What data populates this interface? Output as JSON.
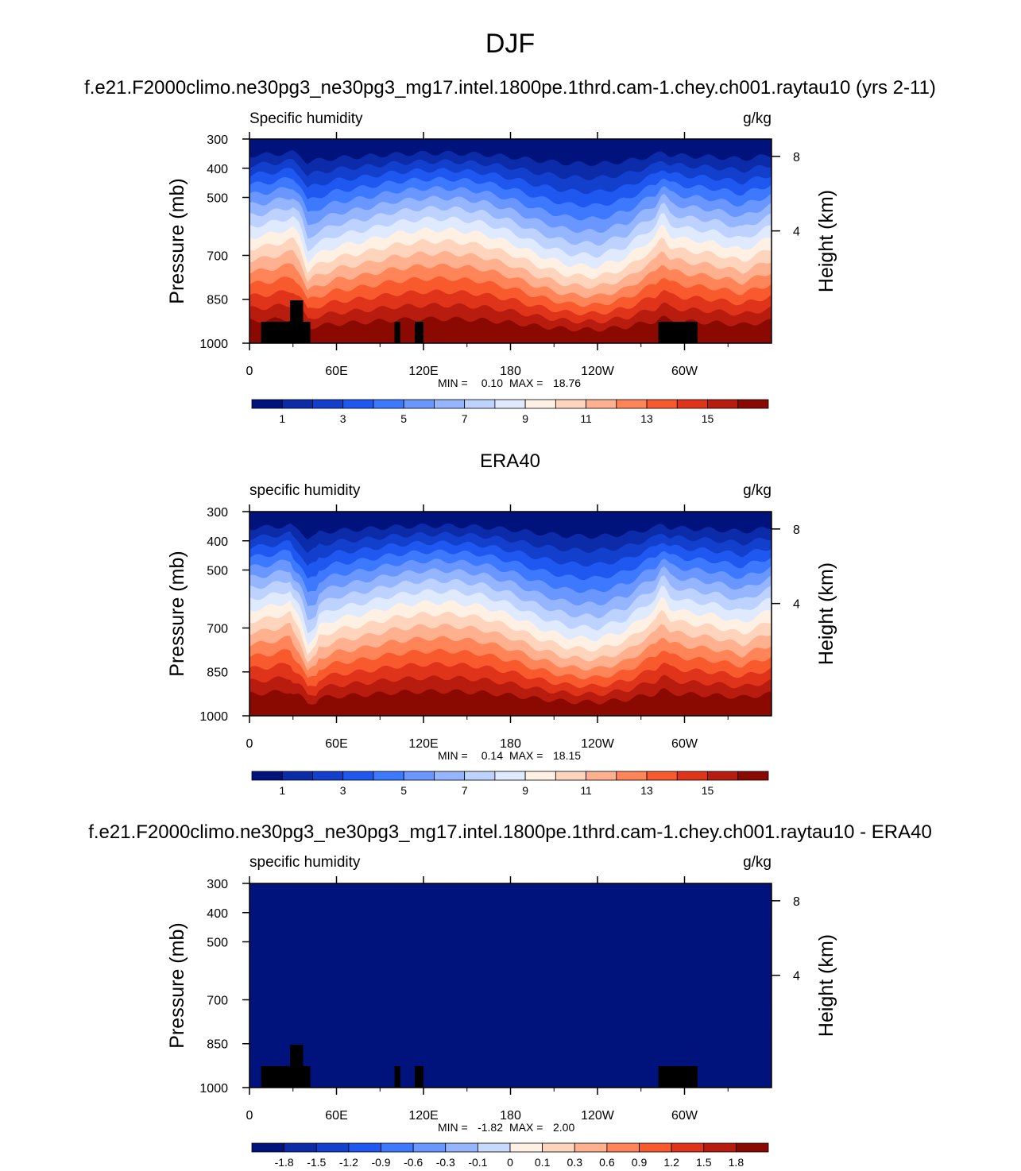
{
  "figure": {
    "title": "DJF"
  },
  "colors": {
    "frame": "#000000",
    "background": "#ffffff",
    "land_mask": "#000000"
  },
  "chart_data": [
    {
      "type": "heatmap",
      "title": "f.e21.F2000climo.ne30pg3_ne30pg3_mg17.intel.1800pe.1thrd.cam-1.chey.ch001.raytau10 (yrs 2-11)",
      "left_string": "Specific humidity",
      "right_string": "g/kg",
      "ylabel": "Pressure (mb)",
      "y2label": "Height (km)",
      "x_ticks": [
        "0",
        "60E",
        "120E",
        "180",
        "120W",
        "60W"
      ],
      "y_ticks": [
        "300",
        "400",
        "500",
        "700",
        "850",
        "1000"
      ],
      "y2_ticks": [
        "8",
        "4"
      ],
      "stats": {
        "min_label": "MIN =",
        "min": "0.10",
        "max_label": "MAX =",
        "max": "18.76"
      },
      "colorbar": {
        "labels": [
          "1",
          "3",
          "5",
          "7",
          "9",
          "11",
          "13",
          "15"
        ],
        "colors": [
          "#00137d",
          "#0b2ba8",
          "#123fcc",
          "#1e58f0",
          "#3c79ff",
          "#6a97ff",
          "#95b6ff",
          "#bdd2ff",
          "#e0eaff",
          "#fff0e4",
          "#ffd4bd",
          "#ffb08e",
          "#ff8458",
          "#f85a2e",
          "#e0341a",
          "#b81c0e",
          "#8a0900"
        ]
      },
      "surface_profile": {
        "lon_deg": [
          0,
          10,
          20,
          25,
          30,
          35,
          40,
          45,
          60,
          80,
          100,
          110,
          120,
          140,
          160,
          180,
          200,
          220,
          240,
          260,
          270,
          280,
          285,
          290,
          300,
          320,
          340,
          360
        ],
        "sfc_ratio": [
          0.08,
          0.1,
          0.12,
          0.22,
          0.24,
          0.18,
          0.05,
          0.04,
          0.05,
          0.06,
          0.1,
          0.06,
          0.1,
          0.12,
          0.11,
          0.09,
          0.06,
          0.04,
          0.05,
          0.08,
          0.12,
          0.25,
          0.18,
          0.1,
          0.09,
          0.08,
          0.07,
          0.08
        ],
        "bump_ratio": [
          0.55,
          0.6,
          0.66,
          0.72,
          0.75,
          0.6,
          0.32,
          0.35,
          0.4,
          0.45,
          0.55,
          0.5,
          0.52,
          0.52,
          0.48,
          0.42,
          0.3,
          0.25,
          0.28,
          0.35,
          0.42,
          0.8,
          0.6,
          0.55,
          0.52,
          0.5,
          0.48,
          0.5
        ]
      }
    },
    {
      "type": "heatmap",
      "title": "ERA40",
      "left_string": "specific humidity",
      "right_string": "g/kg",
      "ylabel": "Pressure (mb)",
      "y2label": "Height (km)",
      "x_ticks": [
        "0",
        "60E",
        "120E",
        "180",
        "120W",
        "60W"
      ],
      "y_ticks": [
        "300",
        "400",
        "500",
        "700",
        "850",
        "1000"
      ],
      "y2_ticks": [
        "8",
        "4"
      ],
      "stats": {
        "min_label": "MIN =",
        "min": "0.14",
        "max_label": "MAX =",
        "max": "18.15"
      },
      "colorbar": {
        "labels": [
          "1",
          "3",
          "5",
          "7",
          "9",
          "11",
          "13",
          "15"
        ],
        "colors": [
          "#00137d",
          "#0b2ba8",
          "#123fcc",
          "#1e58f0",
          "#3c79ff",
          "#6a97ff",
          "#95b6ff",
          "#bdd2ff",
          "#e0eaff",
          "#fff0e4",
          "#ffd4bd",
          "#ffb08e",
          "#ff8458",
          "#f85a2e",
          "#e0341a",
          "#b81c0e",
          "#8a0900"
        ]
      }
    },
    {
      "type": "heatmap",
      "title": "f.e21.F2000climo.ne30pg3_ne30pg3_mg17.intel.1800pe.1thrd.cam-1.chey.ch001.raytau10 - ERA40",
      "left_string": "specific humidity",
      "right_string": "g/kg",
      "ylabel": "Pressure (mb)",
      "y2label": "Height (km)",
      "x_ticks": [
        "0",
        "60E",
        "120E",
        "180",
        "120W",
        "60W"
      ],
      "y_ticks": [
        "300",
        "400",
        "500",
        "700",
        "850",
        "1000"
      ],
      "y2_ticks": [
        "8",
        "4"
      ],
      "stats": {
        "min_label": "MIN =",
        "min": "-1.82",
        "max_label": "MAX =",
        "max": "2.00"
      },
      "colorbar": {
        "labels": [
          "-1.8",
          "-1.5",
          "-1.2",
          "-0.9",
          "-0.6",
          "-0.3",
          "-0.1",
          "0",
          "0.1",
          "0.3",
          "0.6",
          "0.9",
          "1.2",
          "1.5",
          "1.8"
        ],
        "colors": [
          "#00137d",
          "#0b2ba8",
          "#123fcc",
          "#1e58f0",
          "#3c79ff",
          "#6a97ff",
          "#95b6ff",
          "#c7dafc",
          "#fff0e4",
          "#ffd4bd",
          "#ffb08e",
          "#ff8458",
          "#f85a2e",
          "#e0341a",
          "#b81c0e",
          "#8a0900"
        ]
      }
    }
  ]
}
